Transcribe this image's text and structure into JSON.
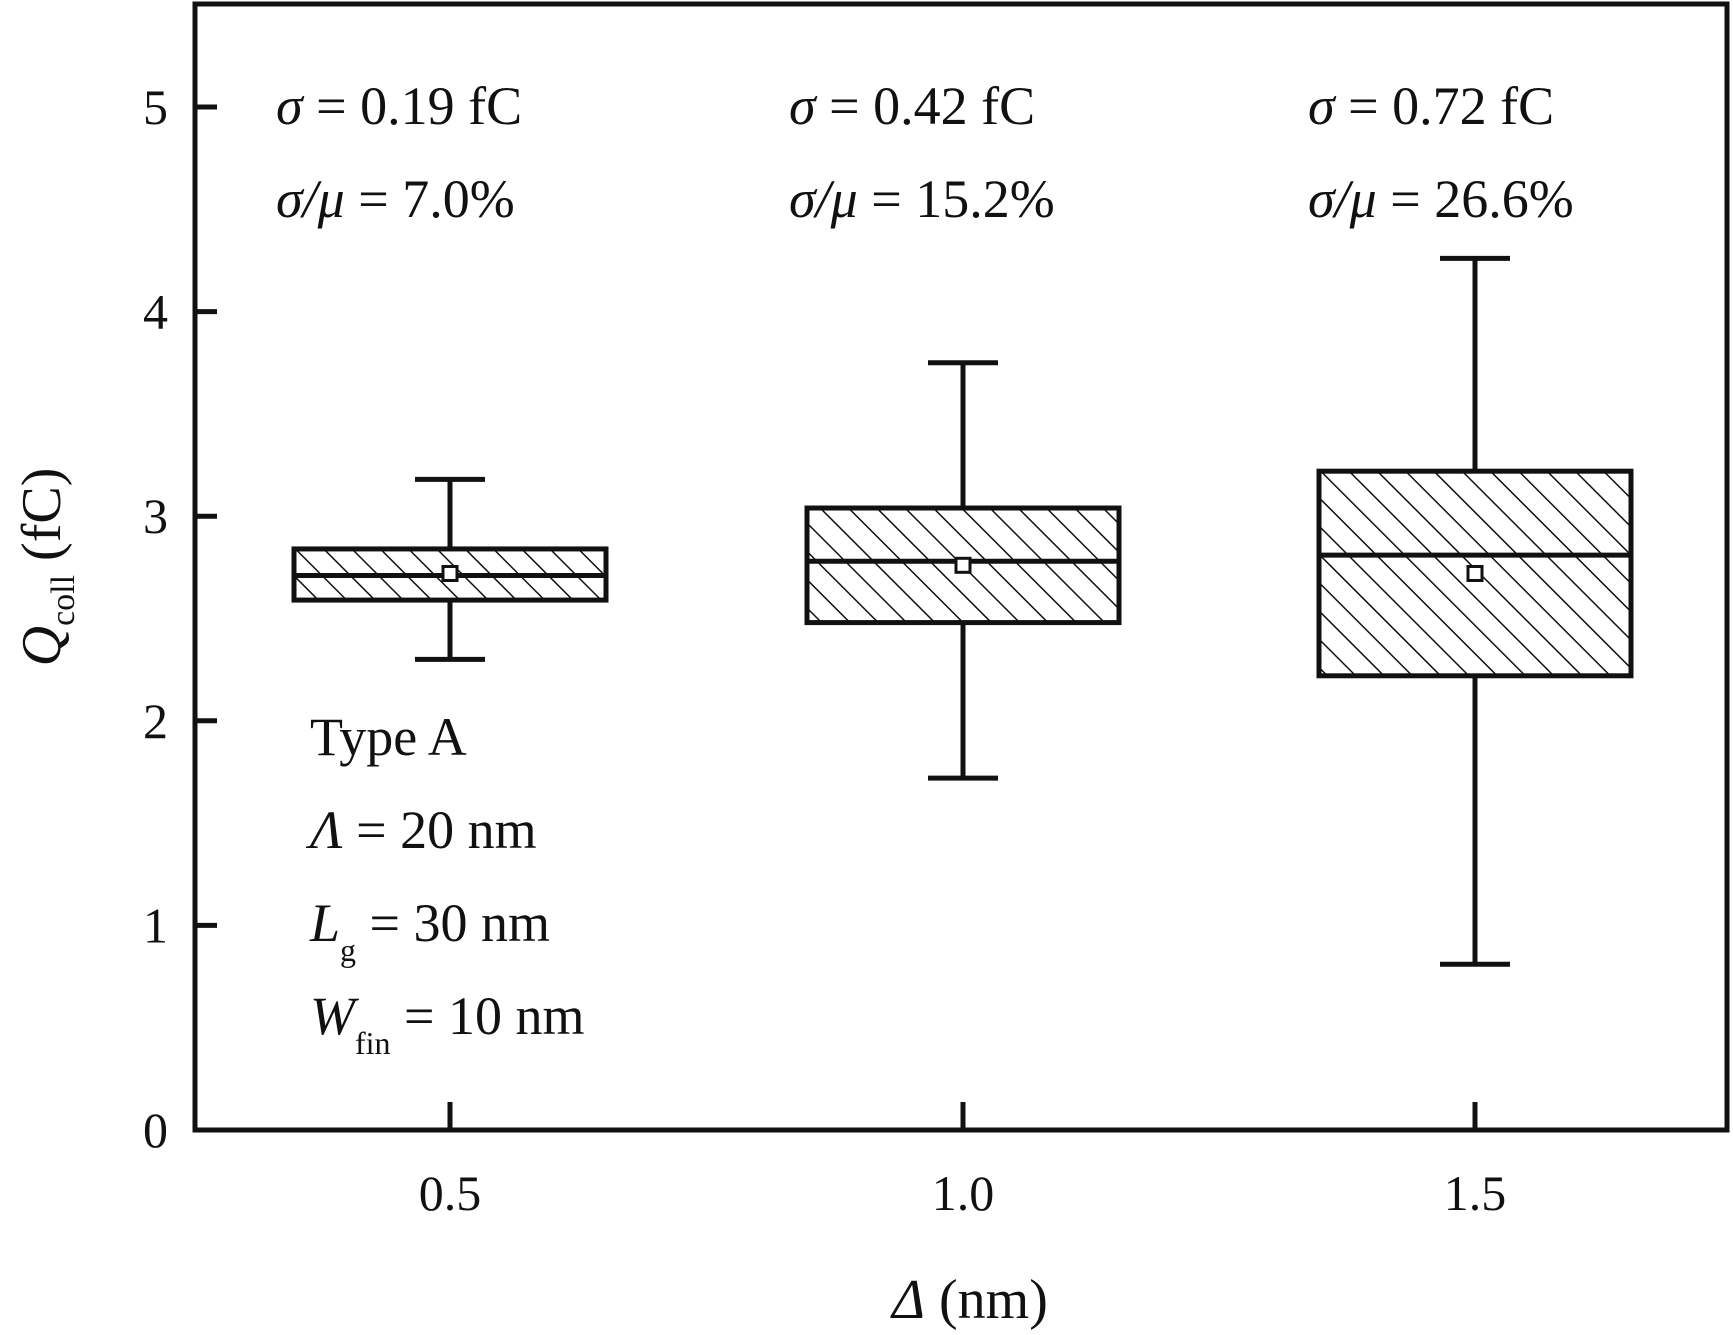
{
  "chart_data": {
    "type": "box",
    "xlabel": {
      "symbol": "Δ",
      "unit": "(nm)"
    },
    "ylabel": {
      "symbol": "Q",
      "sub": "coll",
      "unit": "(fC)"
    },
    "categories": [
      "0.5",
      "1.0",
      "1.5"
    ],
    "ylim": [
      0,
      5.5
    ],
    "yticks": [
      "0",
      "1",
      "2",
      "3",
      "4",
      "5"
    ],
    "grid": false,
    "fill_pattern": "diagonal-hatch",
    "boxes": [
      {
        "category": "0.5",
        "whisker_low": 2.3,
        "q1": 2.59,
        "median": 2.71,
        "q3": 2.84,
        "whisker_high": 3.18,
        "mean": 2.72
      },
      {
        "category": "1.0",
        "whisker_low": 1.72,
        "q1": 2.48,
        "median": 2.78,
        "q3": 3.04,
        "whisker_high": 3.75,
        "mean": 2.76
      },
      {
        "category": "1.5",
        "whisker_low": 0.81,
        "q1": 2.22,
        "median": 2.81,
        "q3": 3.22,
        "whisker_high": 4.26,
        "mean": 2.72
      }
    ],
    "stats_labels": [
      {
        "sigma_label": "σ",
        "sigma_value": " = 0.19 fC",
        "ratio_label": "σ/μ",
        "ratio_value": " = 7.0%"
      },
      {
        "sigma_label": "σ",
        "sigma_value": " = 0.42 fC",
        "ratio_label": "σ/μ",
        "ratio_value": " = 15.2%"
      },
      {
        "sigma_label": "σ",
        "sigma_value": " = 0.72 fC",
        "ratio_label": "σ/μ",
        "ratio_value": " = 26.6%"
      }
    ],
    "legend_text": {
      "type": "Type A",
      "lambda_symbol": "Λ",
      "lambda_value": " = 20 nm",
      "lg_symbol": "L",
      "lg_sub": "g",
      "lg_value": " = 30 nm",
      "wfin_symbol": "W",
      "wfin_sub": "fin",
      "wfin_value": " = 10 nm"
    }
  }
}
